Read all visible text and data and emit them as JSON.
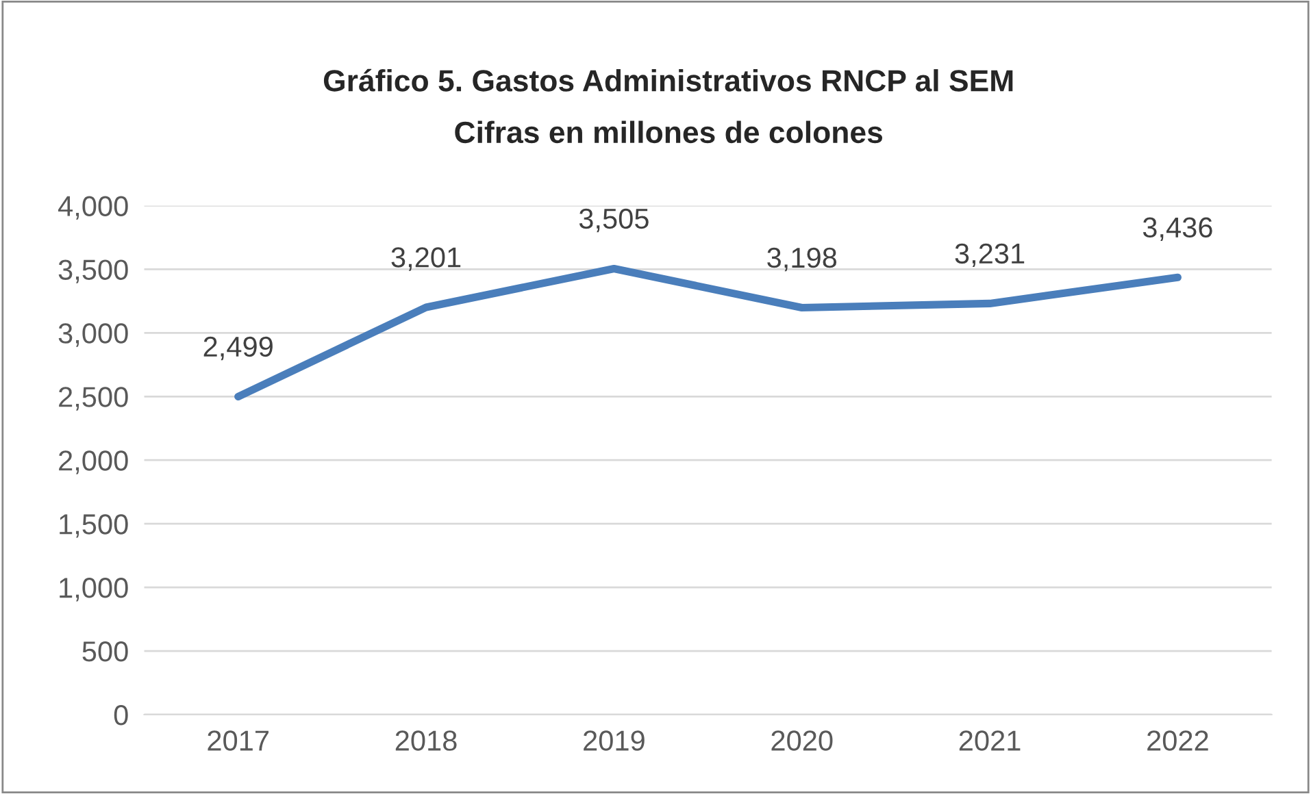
{
  "chart_data": {
    "type": "line",
    "title": "Gráfico 5. Gastos Administrativos RNCP al SEM",
    "subtitle": "Cifras en millones de colones",
    "categories": [
      "2017",
      "2018",
      "2019",
      "2020",
      "2021",
      "2022"
    ],
    "series": [
      {
        "color": "#4a7ebb",
        "values": [
          2499,
          3201,
          3505,
          3198,
          3231,
          3436
        ],
        "value_labels": [
          "2,499",
          "3,201",
          "3,505",
          "3,198",
          "3,231",
          "3,436"
        ]
      }
    ],
    "ylim": [
      0,
      4000
    ],
    "yticks": [
      {
        "value": 0,
        "label": "0"
      },
      {
        "value": 500,
        "label": "500"
      },
      {
        "value": 1000,
        "label": "1,000"
      },
      {
        "value": 1500,
        "label": "1,500"
      },
      {
        "value": 2000,
        "label": "2,000"
      },
      {
        "value": 2500,
        "label": "2,500"
      },
      {
        "value": 3000,
        "label": "3,000"
      },
      {
        "value": 3500,
        "label": "3,500"
      },
      {
        "value": 4000,
        "label": "4,000"
      }
    ],
    "grid": "y",
    "marker": "none",
    "line_style": "solid",
    "legend": false
  }
}
